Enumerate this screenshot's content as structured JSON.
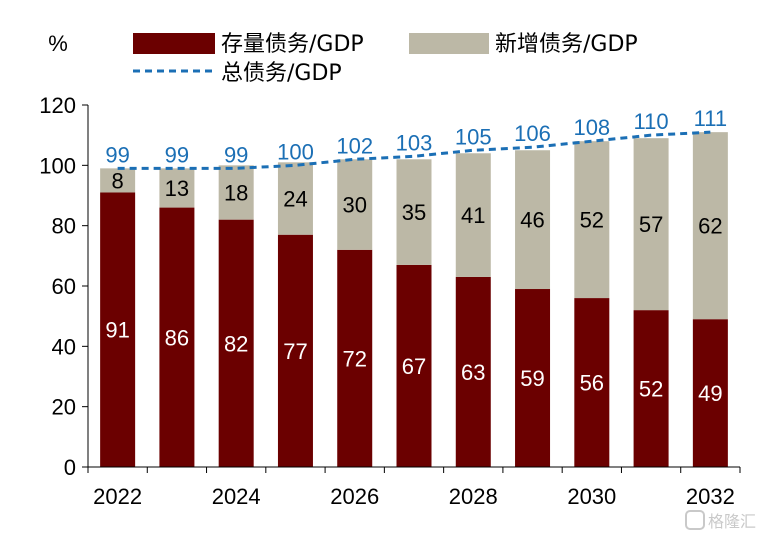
{
  "watermark": "格隆汇",
  "chart_data": {
    "type": "bar",
    "stacked": true,
    "title": "",
    "ylabel": "%",
    "xlabel": "",
    "ylim": [
      0,
      120
    ],
    "yticks": [
      0,
      20,
      40,
      60,
      80,
      100,
      120
    ],
    "x": [
      2022,
      2023,
      2024,
      2025,
      2026,
      2027,
      2028,
      2029,
      2030,
      2031,
      2032
    ],
    "xtick_labels": [
      "2022",
      "",
      "2024",
      "",
      "2026",
      "",
      "2028",
      "",
      "2030",
      "",
      "2032"
    ],
    "legend_position": "top",
    "series": [
      {
        "name": "存量债务/GDP",
        "kind": "bar",
        "color": "#6b0000",
        "values": [
          91,
          86,
          82,
          77,
          72,
          67,
          63,
          59,
          56,
          52,
          49
        ]
      },
      {
        "name": "新增债务/GDP",
        "kind": "bar",
        "color": "#bcb8a6",
        "values": [
          8,
          13,
          18,
          24,
          30,
          35,
          41,
          46,
          52,
          57,
          62
        ]
      },
      {
        "name": "总债务/GDP",
        "kind": "line",
        "style": "dashed",
        "color": "#1b6fb5",
        "values": [
          99,
          99,
          99,
          100,
          102,
          103,
          105,
          106,
          108,
          110,
          111
        ]
      }
    ]
  }
}
